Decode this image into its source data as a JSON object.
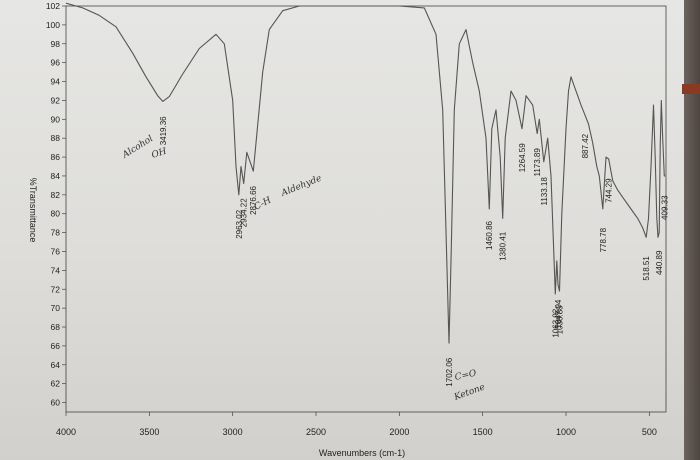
{
  "chart_data": {
    "type": "line",
    "title": "",
    "xlabel": "Wavenumbers (cm-1)",
    "ylabel": "%Transmittance",
    "xlim": [
      4000,
      400
    ],
    "ylim": [
      59,
      102
    ],
    "x_ticks": [
      "4000",
      "3500",
      "3000",
      "2500",
      "2000",
      "1500",
      "1000",
      "500"
    ],
    "y_ticks": [
      "102",
      "100",
      "98",
      "96",
      "94",
      "92",
      "90",
      "88",
      "86",
      "84",
      "82",
      "80",
      "78",
      "76",
      "74",
      "72",
      "70",
      "68",
      "66",
      "64",
      "62",
      "60"
    ],
    "grid": false,
    "series": [
      {
        "color": "#555555",
        "points": [
          [
            4000,
            102.3
          ],
          [
            3900,
            101.8
          ],
          [
            3800,
            101.0
          ],
          [
            3700,
            99.8
          ],
          [
            3600,
            97.0
          ],
          [
            3520,
            94.5
          ],
          [
            3450,
            92.5
          ],
          [
            3419,
            91.9
          ],
          [
            3380,
            92.4
          ],
          [
            3300,
            94.8
          ],
          [
            3200,
            97.5
          ],
          [
            3100,
            99.0
          ],
          [
            3050,
            98.0
          ],
          [
            3000,
            92.0
          ],
          [
            2980,
            85.0
          ],
          [
            2963,
            82.0
          ],
          [
            2950,
            85.0
          ],
          [
            2934,
            83.2
          ],
          [
            2915,
            86.5
          ],
          [
            2876,
            84.5
          ],
          [
            2860,
            87.5
          ],
          [
            2820,
            95.0
          ],
          [
            2780,
            99.5
          ],
          [
            2700,
            101.5
          ],
          [
            2600,
            102.0
          ],
          [
            2400,
            102.0
          ],
          [
            2200,
            102.0
          ],
          [
            2000,
            102.0
          ],
          [
            1850,
            101.8
          ],
          [
            1780,
            99.0
          ],
          [
            1740,
            91.0
          ],
          [
            1715,
            75.0
          ],
          [
            1702,
            66.3
          ],
          [
            1690,
            75.0
          ],
          [
            1670,
            91.0
          ],
          [
            1640,
            98.0
          ],
          [
            1600,
            99.5
          ],
          [
            1560,
            96.0
          ],
          [
            1520,
            93.0
          ],
          [
            1480,
            88.0
          ],
          [
            1460,
            80.5
          ],
          [
            1445,
            89.0
          ],
          [
            1420,
            91.0
          ],
          [
            1395,
            86.0
          ],
          [
            1380,
            79.5
          ],
          [
            1365,
            88.0
          ],
          [
            1330,
            93.0
          ],
          [
            1300,
            92.0
          ],
          [
            1264,
            89.0
          ],
          [
            1240,
            92.5
          ],
          [
            1200,
            91.5
          ],
          [
            1173,
            88.5
          ],
          [
            1160,
            90.0
          ],
          [
            1133,
            85.5
          ],
          [
            1110,
            88.0
          ],
          [
            1090,
            84.0
          ],
          [
            1064,
            71.5
          ],
          [
            1055,
            75.0
          ],
          [
            1048,
            72.5
          ],
          [
            1039,
            71.8
          ],
          [
            1025,
            80.0
          ],
          [
            1000,
            89.0
          ],
          [
            985,
            93.0
          ],
          [
            970,
            94.5
          ],
          [
            950,
            93.5
          ],
          [
            930,
            92.5
          ],
          [
            910,
            91.5
          ],
          [
            887,
            90.5
          ],
          [
            865,
            89.5
          ],
          [
            840,
            87.5
          ],
          [
            815,
            85.0
          ],
          [
            800,
            84.0
          ],
          [
            779,
            80.5
          ],
          [
            760,
            86.0
          ],
          [
            744,
            85.8
          ],
          [
            720,
            83.5
          ],
          [
            690,
            82.5
          ],
          [
            650,
            81.5
          ],
          [
            610,
            80.5
          ],
          [
            570,
            79.5
          ],
          [
            540,
            78.5
          ],
          [
            519,
            77.5
          ],
          [
            505,
            79.5
          ],
          [
            490,
            85.0
          ],
          [
            475,
            91.5
          ],
          [
            465,
            86.0
          ],
          [
            455,
            79.5
          ],
          [
            448,
            77.5
          ],
          [
            441,
            78.0
          ],
          [
            435,
            87.0
          ],
          [
            428,
            92.0
          ],
          [
            420,
            88.0
          ],
          [
            410,
            84.0
          ],
          [
            405,
            84.0
          ]
        ]
      }
    ],
    "peak_labels": [
      {
        "x": 3419.36,
        "text": "3419.36"
      },
      {
        "x": 2963.02,
        "text": "2963.02"
      },
      {
        "x": 2934.22,
        "text": "2934.22"
      },
      {
        "x": 2876.66,
        "text": "2876.66"
      },
      {
        "x": 1702.06,
        "text": "1702.06"
      },
      {
        "x": 1460.86,
        "text": "1460.86"
      },
      {
        "x": 1380.41,
        "text": "1380.41"
      },
      {
        "x": 1264.59,
        "text": "1264.59"
      },
      {
        "x": 1173.89,
        "text": "1173.89"
      },
      {
        "x": 1133.18,
        "text": "1133.18"
      },
      {
        "x": 1063.92,
        "text": "1063.92"
      },
      {
        "x": 1047.94,
        "text": "1047.94"
      },
      {
        "x": 1038.85,
        "text": "1038.85"
      },
      {
        "x": 887.42,
        "text": "887.42"
      },
      {
        "x": 778.78,
        "text": "778.78"
      },
      {
        "x": 744.29,
        "text": "744.29"
      },
      {
        "x": 518.51,
        "text": "518.51"
      },
      {
        "x": 440.89,
        "text": "440.89"
      },
      {
        "x": 409.33,
        "text": "409.33"
      }
    ],
    "annotations": [
      {
        "text": "Alcohol",
        "x": 3600
      },
      {
        "text": "OH",
        "x": 3480
      },
      {
        "text": "C-H",
        "x": 2820
      },
      {
        "text": "Aldehyde",
        "x": 2620
      },
      {
        "text": "C=O",
        "x": 1640
      },
      {
        "text": "Ketone",
        "x": 1640
      }
    ]
  }
}
